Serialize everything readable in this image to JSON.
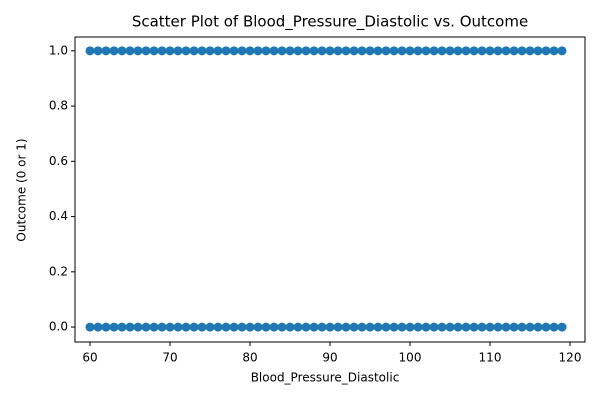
{
  "chart_data": {
    "type": "scatter",
    "title": "Scatter Plot of Blood_Pressure_Diastolic vs. Outcome",
    "x_label": "Blood_Pressure_Diastolic",
    "y_label": "Outcome (0 or 1)",
    "color": "#1f77b4",
    "x": [
      60,
      61,
      62,
      63,
      64,
      65,
      66,
      67,
      68,
      69,
      70,
      71,
      72,
      73,
      74,
      75,
      76,
      77,
      78,
      79,
      80,
      81,
      82,
      83,
      84,
      85,
      86,
      87,
      88,
      89,
      90,
      91,
      92,
      93,
      94,
      95,
      96,
      97,
      98,
      99,
      100,
      101,
      102,
      103,
      104,
      105,
      106,
      107,
      108,
      109,
      110,
      111,
      112,
      113,
      114,
      115,
      116,
      117,
      118,
      119,
      60,
      61,
      62,
      63,
      64,
      65,
      66,
      67,
      68,
      69,
      70,
      71,
      72,
      73,
      74,
      75,
      76,
      77,
      78,
      79,
      80,
      81,
      82,
      83,
      84,
      85,
      86,
      87,
      88,
      89,
      90,
      91,
      92,
      93,
      94,
      95,
      96,
      97,
      98,
      99,
      100,
      101,
      102,
      103,
      104,
      105,
      106,
      107,
      108,
      109,
      110,
      111,
      112,
      113,
      114,
      115,
      116,
      117,
      118,
      119
    ],
    "y": [
      0,
      0,
      0,
      0,
      0,
      0,
      0,
      0,
      0,
      0,
      0,
      0,
      0,
      0,
      0,
      0,
      0,
      0,
      0,
      0,
      0,
      0,
      0,
      0,
      0,
      0,
      0,
      0,
      0,
      0,
      0,
      0,
      0,
      0,
      0,
      0,
      0,
      0,
      0,
      0,
      0,
      0,
      0,
      0,
      0,
      0,
      0,
      0,
      0,
      0,
      0,
      0,
      0,
      0,
      0,
      0,
      0,
      0,
      0,
      0,
      1,
      1,
      1,
      1,
      1,
      1,
      1,
      1,
      1,
      1,
      1,
      1,
      1,
      1,
      1,
      1,
      1,
      1,
      1,
      1,
      1,
      1,
      1,
      1,
      1,
      1,
      1,
      1,
      1,
      1,
      1,
      1,
      1,
      1,
      1,
      1,
      1,
      1,
      1,
      1,
      1,
      1,
      1,
      1,
      1,
      1,
      1,
      1,
      1,
      1,
      1,
      1,
      1,
      1,
      1,
      1,
      1,
      1,
      1,
      1
    ],
    "xlim": [
      58.125,
      121.875
    ],
    "ylim": [
      -0.054,
      1.05
    ],
    "xticks": [
      60,
      70,
      80,
      90,
      100,
      110,
      120
    ],
    "yticks": [
      {
        "value": 0,
        "label": "0.0"
      },
      {
        "value": 0.2,
        "label": "0.2"
      },
      {
        "value": 0.4,
        "label": "0.4"
      },
      {
        "value": 0.6,
        "label": "0.6"
      },
      {
        "value": 0.8,
        "label": "0.8"
      },
      {
        "value": 1,
        "label": "1.0"
      }
    ]
  }
}
